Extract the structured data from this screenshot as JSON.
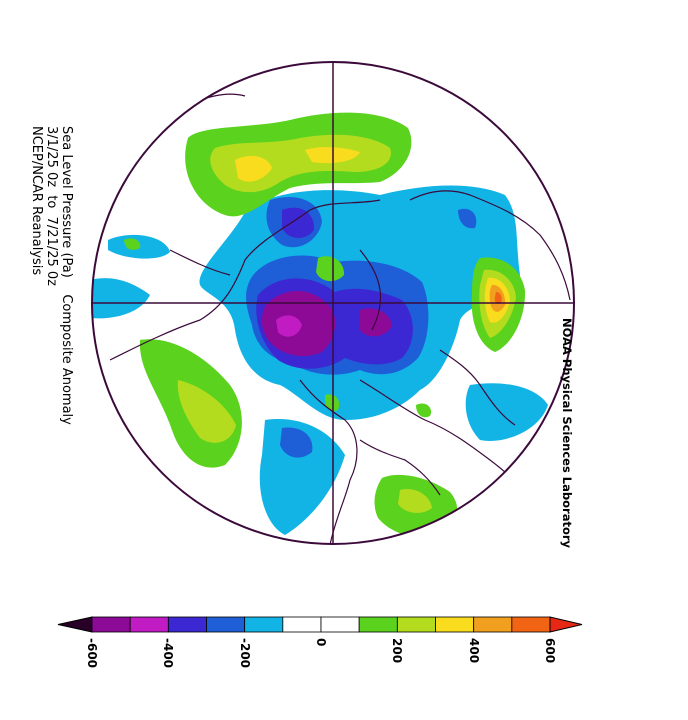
{
  "title": {
    "line1": "Sea Level Pressure (Pa)    Composite Anomaly",
    "line2": "3/1/25 0z  to  7/21/25 0z",
    "line3": "NCEP/NCAR Reanalysis"
  },
  "credit": "NOAA Physical Sciences Laboratory",
  "colorbar": {
    "labels": [
      "-600",
      "-400",
      "-200",
      "0",
      "200",
      "400",
      "600"
    ],
    "colors": [
      "#8c0a96",
      "#c11cc3",
      "#3c28d2",
      "#1e5fd7",
      "#12b4e6",
      "#ffffff",
      "#ffffff",
      "#5ad21e",
      "#b4dc1e",
      "#fadc1e",
      "#f0a01e",
      "#f06414"
    ],
    "under_color": "#280028",
    "over_color": "#e62814"
  },
  "chart_data": {
    "type": "heatmap",
    "projection": "polar stereographic, Northern Hemisphere",
    "variable": "Sea Level Pressure (Pa)",
    "anomaly_range": [
      -600,
      600
    ],
    "contour_interval": 100
  }
}
